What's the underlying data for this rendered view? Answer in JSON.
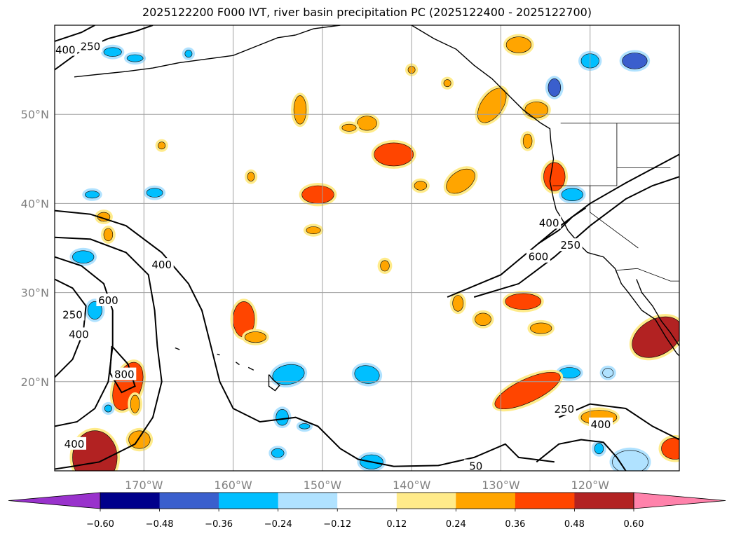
{
  "title": "2025122200 F000 IVT, river basin precipitation PC (2025122400 - 2025122700)",
  "chart_data": {
    "type": "heatmap",
    "title": "2025122200 F000 IVT, river basin precipitation PC (2025122400 - 2025122700)",
    "map": {
      "lon_range": [
        -180,
        -110
      ],
      "lat_range": [
        10,
        60
      ],
      "grid": true
    },
    "lat_ticks": [
      {
        "value": 20,
        "label": "20°N"
      },
      {
        "value": 30,
        "label": "30°N"
      },
      {
        "value": 40,
        "label": "40°N"
      },
      {
        "value": 50,
        "label": "50°N"
      }
    ],
    "lon_ticks": [
      {
        "value": -170,
        "label": "170°W"
      },
      {
        "value": -160,
        "label": "160°W"
      },
      {
        "value": -150,
        "label": "150°W"
      },
      {
        "value": -140,
        "label": "140°W"
      },
      {
        "value": -130,
        "label": "130°W"
      },
      {
        "value": -120,
        "label": "120°W"
      }
    ],
    "colorbar": {
      "extend": "both",
      "colors": [
        "#9932cc",
        "#00008b",
        "#3a5fcd",
        "#00bfff",
        "#b0e2ff",
        "#ffffff",
        "#ffeb8a",
        "#ffa500",
        "#ff4500",
        "#b22222",
        "#ff82ab"
      ],
      "tick_labels": [
        "−0.60",
        "−0.48",
        "−0.36",
        "−0.24",
        "−0.12",
        "0.12",
        "0.24",
        "0.36",
        "0.48",
        "0.60"
      ]
    },
    "ivt_contour_levels": [
      250,
      400,
      600,
      800
    ],
    "contour_labels": [
      {
        "text": "400",
        "lon": -178.8,
        "lat": 57.2
      },
      {
        "text": "250",
        "lon": -176.0,
        "lat": 57.6
      },
      {
        "text": "400",
        "lon": -168.0,
        "lat": 33.1
      },
      {
        "text": "600",
        "lon": -174.0,
        "lat": 29.1
      },
      {
        "text": "250",
        "lon": -178.0,
        "lat": 27.5
      },
      {
        "text": "400",
        "lon": -177.3,
        "lat": 25.3
      },
      {
        "text": "800",
        "lon": -172.2,
        "lat": 20.8
      },
      {
        "text": "400",
        "lon": -177.8,
        "lat": 13.0
      },
      {
        "text": "400",
        "lon": -124.6,
        "lat": 37.8
      },
      {
        "text": "250",
        "lon": -122.2,
        "lat": 35.3
      },
      {
        "text": "600",
        "lon": -125.8,
        "lat": 34.0
      },
      {
        "text": "250",
        "lon": -122.9,
        "lat": 16.9
      },
      {
        "text": "400",
        "lon": -118.8,
        "lat": 15.2
      },
      {
        "text": "50",
        "lon": -132.8,
        "lat": 10.5
      }
    ]
  }
}
